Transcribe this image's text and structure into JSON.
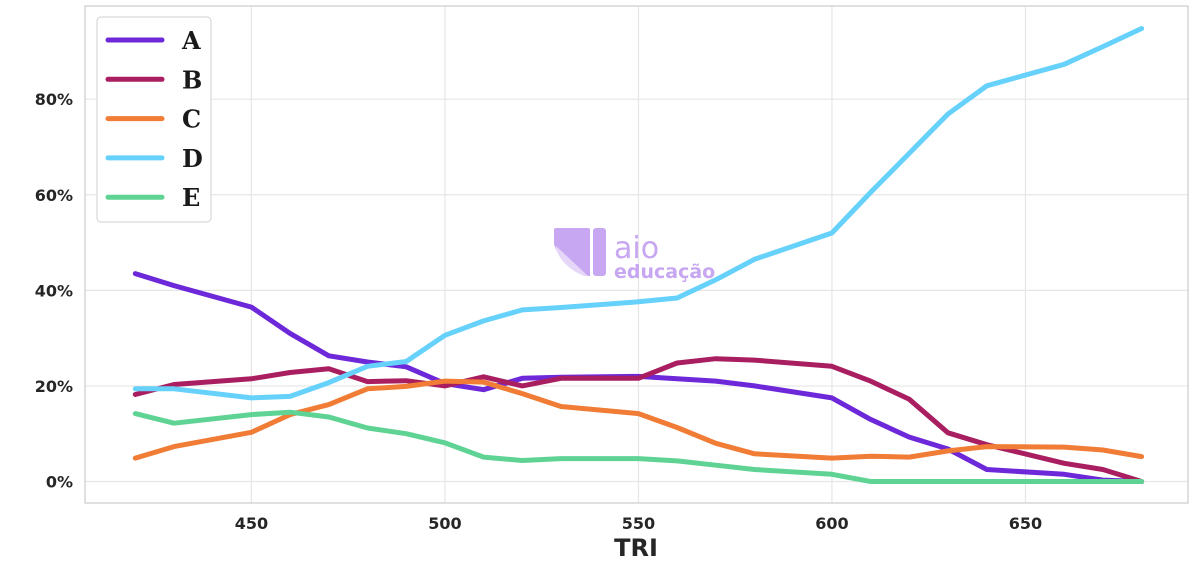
{
  "chart_data": {
    "type": "line",
    "title": "",
    "xlabel": "TRI",
    "ylabel": "",
    "xlim": [
      407,
      692
    ],
    "ylim": [
      -4.5,
      99.5
    ],
    "xticks": [
      450,
      500,
      550,
      600,
      650
    ],
    "yticks": [
      0,
      20,
      40,
      60,
      80
    ],
    "ytick_labels": [
      "0%",
      "20%",
      "40%",
      "60%",
      "80%"
    ],
    "grid": true,
    "legend_position": "top-left",
    "x": [
      420,
      430,
      450,
      460,
      470,
      480,
      490,
      500,
      510,
      520,
      530,
      550,
      560,
      570,
      580,
      600,
      610,
      620,
      630,
      640,
      660,
      670,
      680
    ],
    "series": [
      {
        "name": "A",
        "color": "#6d28d9",
        "values": [
          43.5,
          41.0,
          36.5,
          31.0,
          26.3,
          25.0,
          24.0,
          20.5,
          19.2,
          21.6,
          21.8,
          22.0,
          21.5,
          21.0,
          20.0,
          17.5,
          13.0,
          9.3,
          6.8,
          2.5,
          1.5,
          0.3,
          0.0
        ]
      },
      {
        "name": "B",
        "color": "#a91e60",
        "values": [
          18.2,
          20.3,
          21.5,
          22.8,
          23.6,
          20.9,
          21.1,
          20.0,
          21.9,
          20.0,
          21.6,
          21.6,
          24.8,
          25.7,
          25.4,
          24.1,
          21.0,
          17.2,
          10.2,
          7.7,
          3.8,
          2.5,
          0.0
        ]
      },
      {
        "name": "C",
        "color": "#f07c35",
        "values": [
          4.9,
          7.3,
          10.3,
          14.0,
          16.1,
          19.4,
          19.9,
          21.0,
          20.8,
          18.4,
          15.7,
          14.2,
          11.3,
          8.0,
          5.8,
          4.9,
          5.3,
          5.1,
          6.4,
          7.3,
          7.2,
          6.6,
          5.2
        ]
      },
      {
        "name": "D",
        "color": "#66d1fb",
        "values": [
          19.4,
          19.4,
          17.5,
          17.8,
          20.7,
          24.1,
          25.1,
          30.6,
          33.6,
          35.9,
          36.4,
          37.6,
          38.4,
          42.2,
          46.5,
          52.0,
          60.5,
          68.7,
          76.9,
          82.8,
          87.3,
          91.0,
          94.8
        ]
      },
      {
        "name": "E",
        "color": "#5fd394",
        "values": [
          14.2,
          12.2,
          14.0,
          14.5,
          13.5,
          11.2,
          10.0,
          8.1,
          5.1,
          4.4,
          4.8,
          4.8,
          4.3,
          3.4,
          2.5,
          1.5,
          0.0,
          0.0,
          0.0,
          0.0,
          0.0,
          0.0,
          0.0
        ]
      }
    ]
  },
  "watermark": {
    "brand": "aio",
    "sub": "educação",
    "color": "#c7a6f2"
  }
}
